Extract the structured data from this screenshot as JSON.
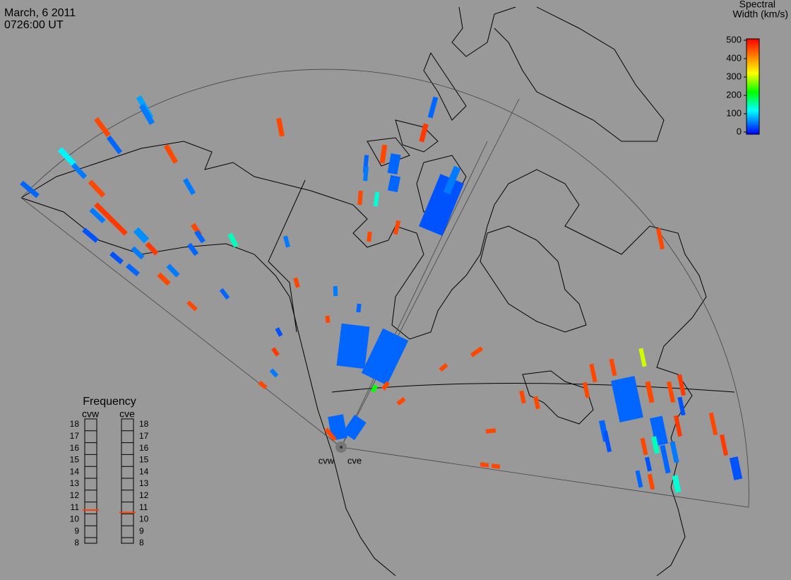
{
  "header": {
    "date": "March, 6 2011",
    "time": "0726:00 UT"
  },
  "colorbar": {
    "title": "Spectral",
    "subtitle": "Width (km/s)",
    "lim": [
      0,
      500
    ],
    "ticks": [
      0,
      100,
      200,
      300,
      400,
      500
    ]
  },
  "frequency": {
    "title": "Frequency",
    "radars": [
      "cvw",
      "cve"
    ],
    "lim": [
      8,
      18
    ],
    "ticks": [
      8,
      9,
      10,
      11,
      12,
      13,
      14,
      15,
      16,
      17,
      18
    ],
    "values": [
      10.8,
      10.6
    ]
  },
  "cells": [
    80,
    60,
    450,
    50,
    450,
    120,
    60,
    50,
    450,
    60,
    460,
    60,
    40,
    70,
    460,
    60,
    40,
    450,
    50,
    50,
    150,
    60,
    450,
    50,
    50,
    450,
    450,
    60,
    50,
    460,
    450,
    50,
    50,
    60,
    50,
    140,
    450,
    450,
    40,
    60,
    450,
    450,
    60,
    50,
    450,
    50,
    50,
    40,
    460,
    450,
    60,
    450,
    450,
    450,
    450,
    220,
    450,
    300,
    450,
    450,
    450,
    50,
    450,
    460,
    450,
    40,
    450,
    450,
    450,
    460,
    40,
    50,
    460,
    50,
    40,
    450,
    150,
    50,
    60,
    40,
    50,
    450,
    140,
    450,
    450,
    450,
    50,
    50,
    450
  ]
}
